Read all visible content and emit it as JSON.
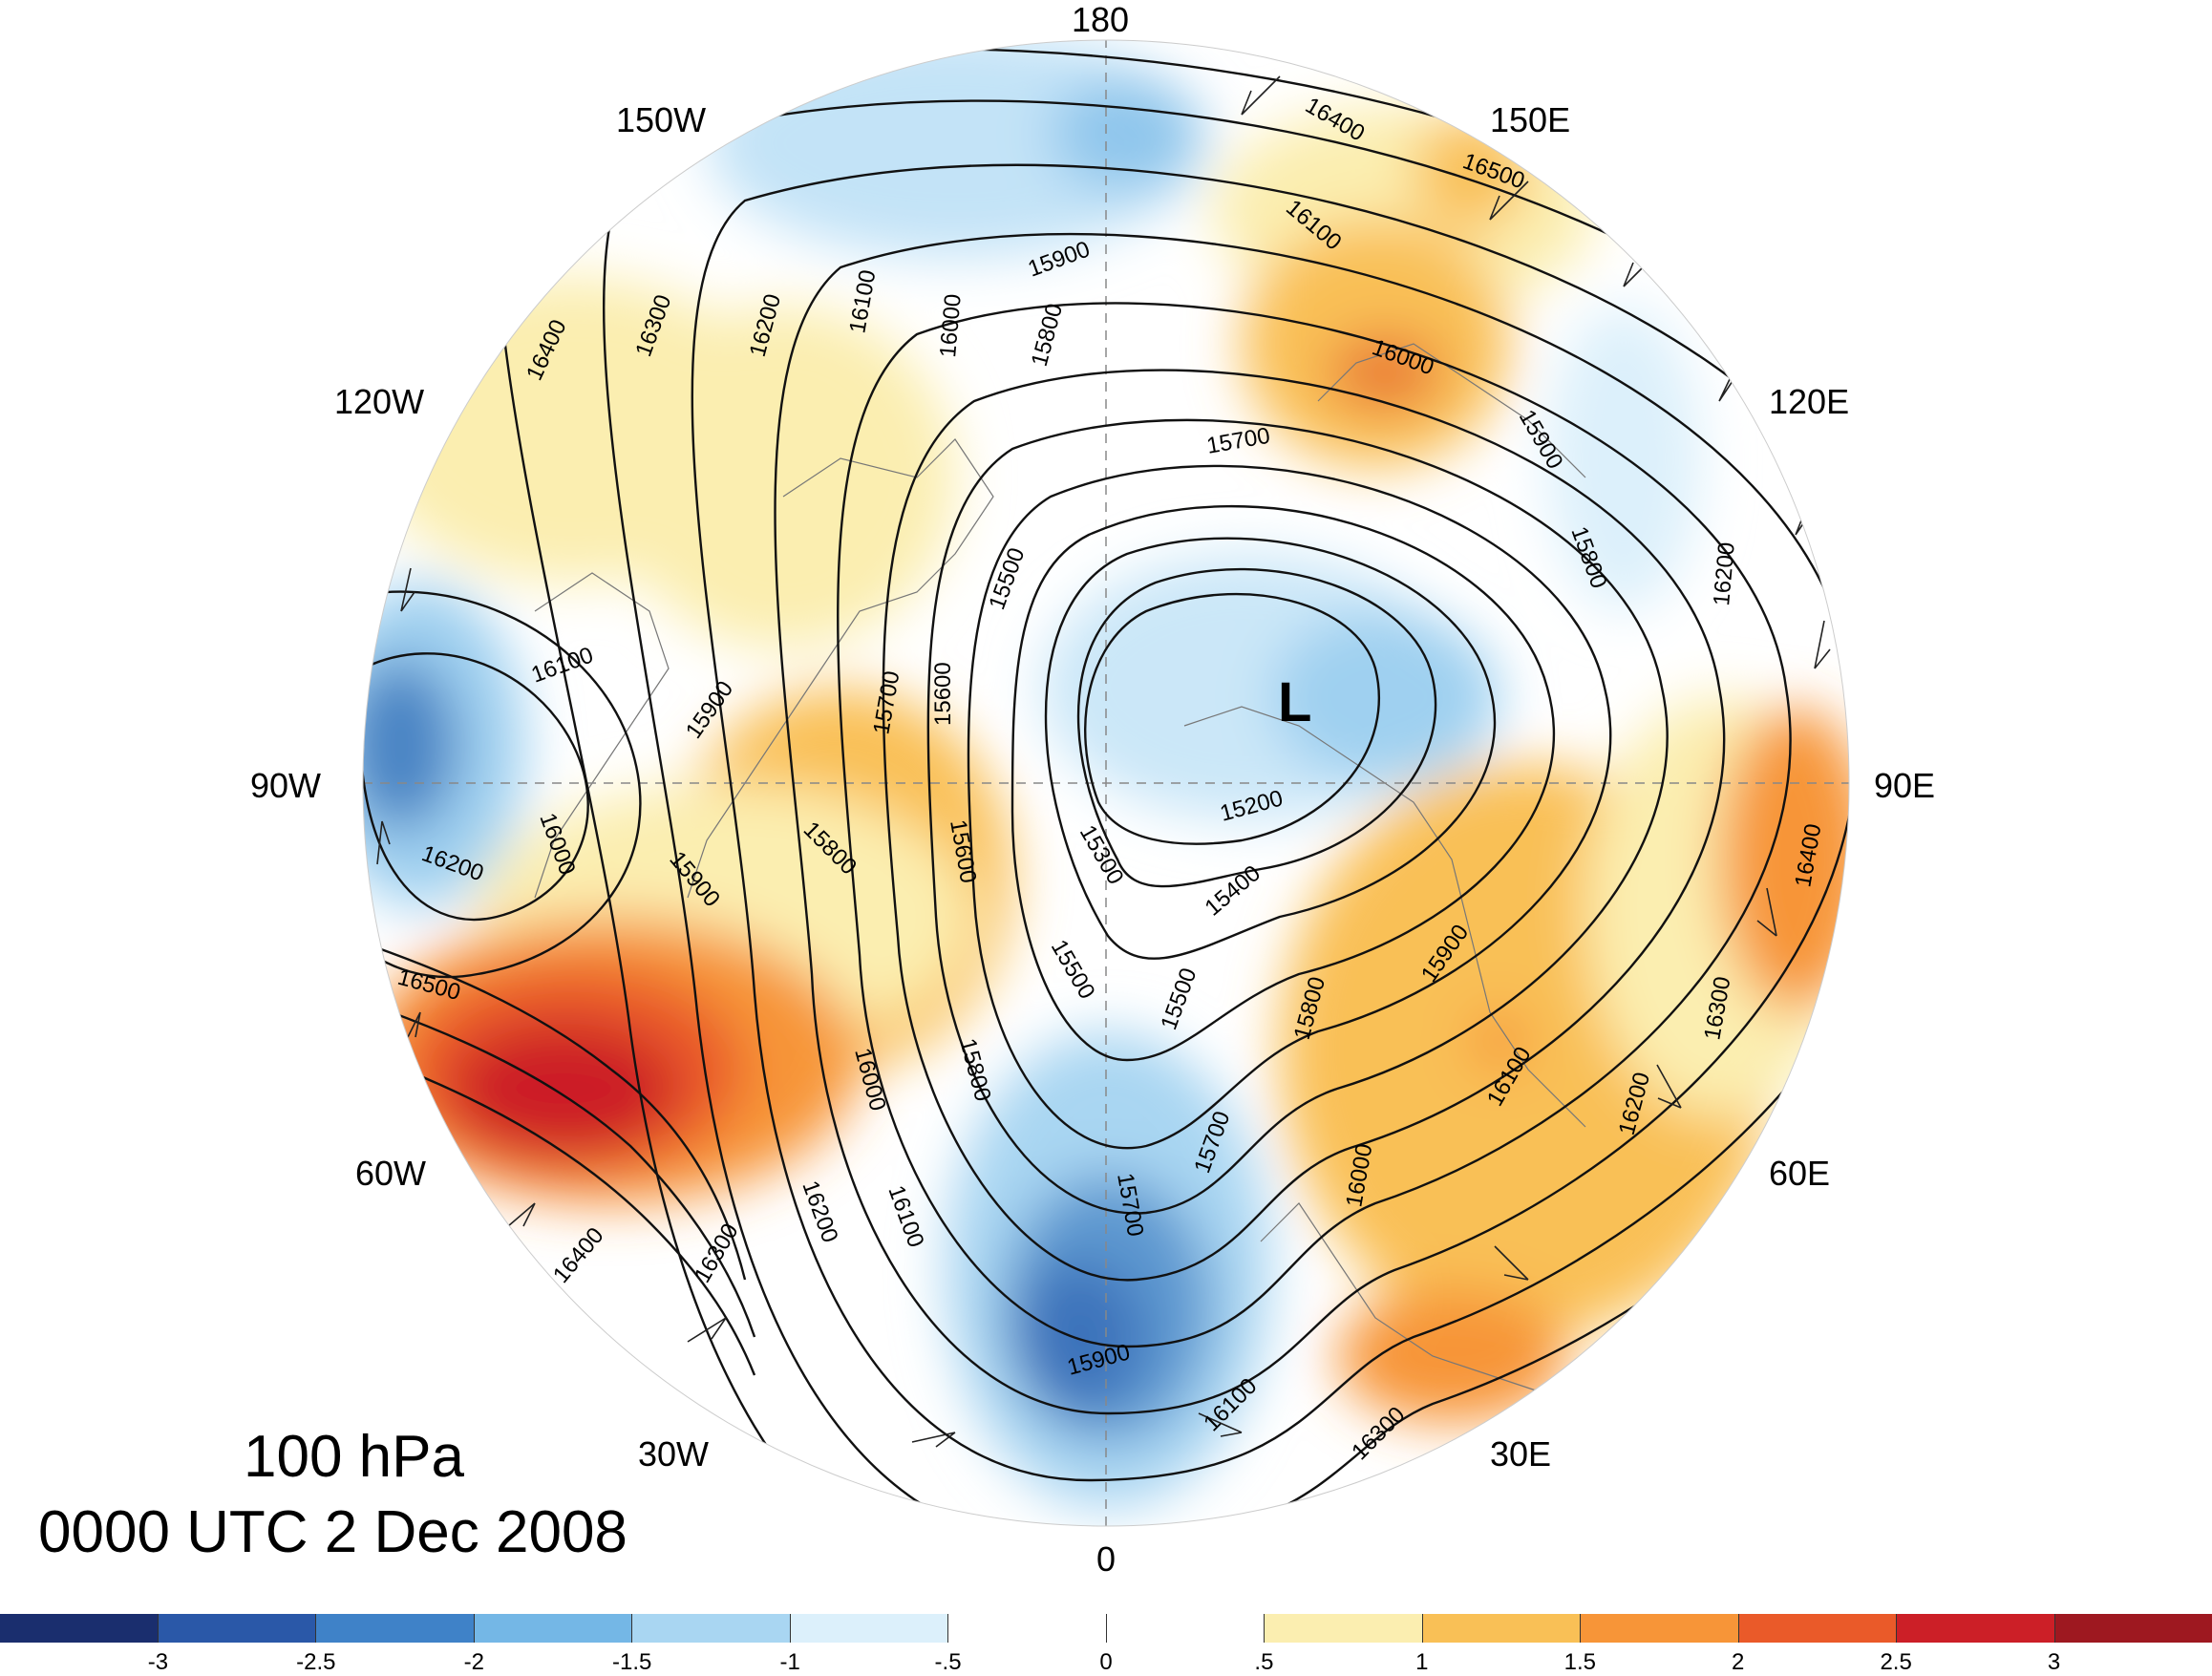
{
  "map": {
    "level_label": "100 hPa",
    "time_label": "0000 UTC 2 Dec 2008",
    "low_marker": "L",
    "longitude_labels": {
      "lon_180": "180",
      "lon_150w": "150W",
      "lon_150e": "150E",
      "lon_120w": "120W",
      "lon_120e": "120E",
      "lon_90w": "90W",
      "lon_90e": "90E",
      "lon_60w": "60W",
      "lon_60e": "60E",
      "lon_30w": "30W",
      "lon_30e": "30E",
      "lon_0": "0"
    },
    "contour_labels": {
      "c_16400_top": "16400",
      "c_16500_top": "16500",
      "c_16100_top": "16100",
      "c_15900_top": "15900",
      "c_16000_e": "16000",
      "c_15700_top": "15700",
      "c_15800_top": "15800",
      "c_15900_e": "15900",
      "c_15800_e": "15800",
      "c_16200_e": "16200",
      "c_16400_w": "16400",
      "c_16300_w": "16300",
      "c_16200_w": "16200",
      "c_16100_w": "16100",
      "c_16000_w": "16000",
      "c_15500_c": "15500",
      "c_16100_pw": "16100",
      "c_15900_pw": "15900",
      "c_15700_c": "15700",
      "c_15600_c": "15600",
      "c_16000_pw": "16000",
      "c_16200_pw": "16200",
      "c_15900_sw": "15900",
      "c_15800_sw": "15800",
      "c_15600_s": "15600",
      "c_15200_c": "15200",
      "c_15300_c": "15300",
      "c_15400_c": "15400",
      "c_16500_atl": "16500",
      "c_16400_atl": "16400",
      "c_16300_atl": "16300",
      "c_16200_atl": "16200",
      "c_16100_atl": "16100",
      "c_16000_atl": "16000",
      "c_15800_atl": "15800",
      "c_15500_s": "15500",
      "c_15500_s2": "15500",
      "c_15800_s": "15800",
      "c_15900_s": "15900",
      "c_16100_eu": "16100",
      "c_16200_eu": "16200",
      "c_16300_eu": "16300",
      "c_16400_eu": "16400",
      "c_15700_eu": "15700",
      "c_15700_eu2": "15700",
      "c_16000_eu": "16000",
      "c_15900_ws": "15900",
      "c_16100_s": "16100",
      "c_16300_s": "16300"
    }
  },
  "colorbar": {
    "ticks": [
      "-3",
      "-2.5",
      "-2",
      "-1.5",
      "-1",
      "-.5",
      "0",
      ".5",
      "1",
      "1.5",
      "2",
      "2.5",
      "3"
    ],
    "colors": [
      "#1a2e6e",
      "#2a58a8",
      "#3f82c8",
      "#74b7e6",
      "#a9d6f2",
      "#dcf0fb",
      "#ffffff",
      "#ffffff",
      "#fbeeb0",
      "#f9c056",
      "#f79538",
      "#ea5a29",
      "#cc1f27",
      "#9e1820"
    ]
  }
}
